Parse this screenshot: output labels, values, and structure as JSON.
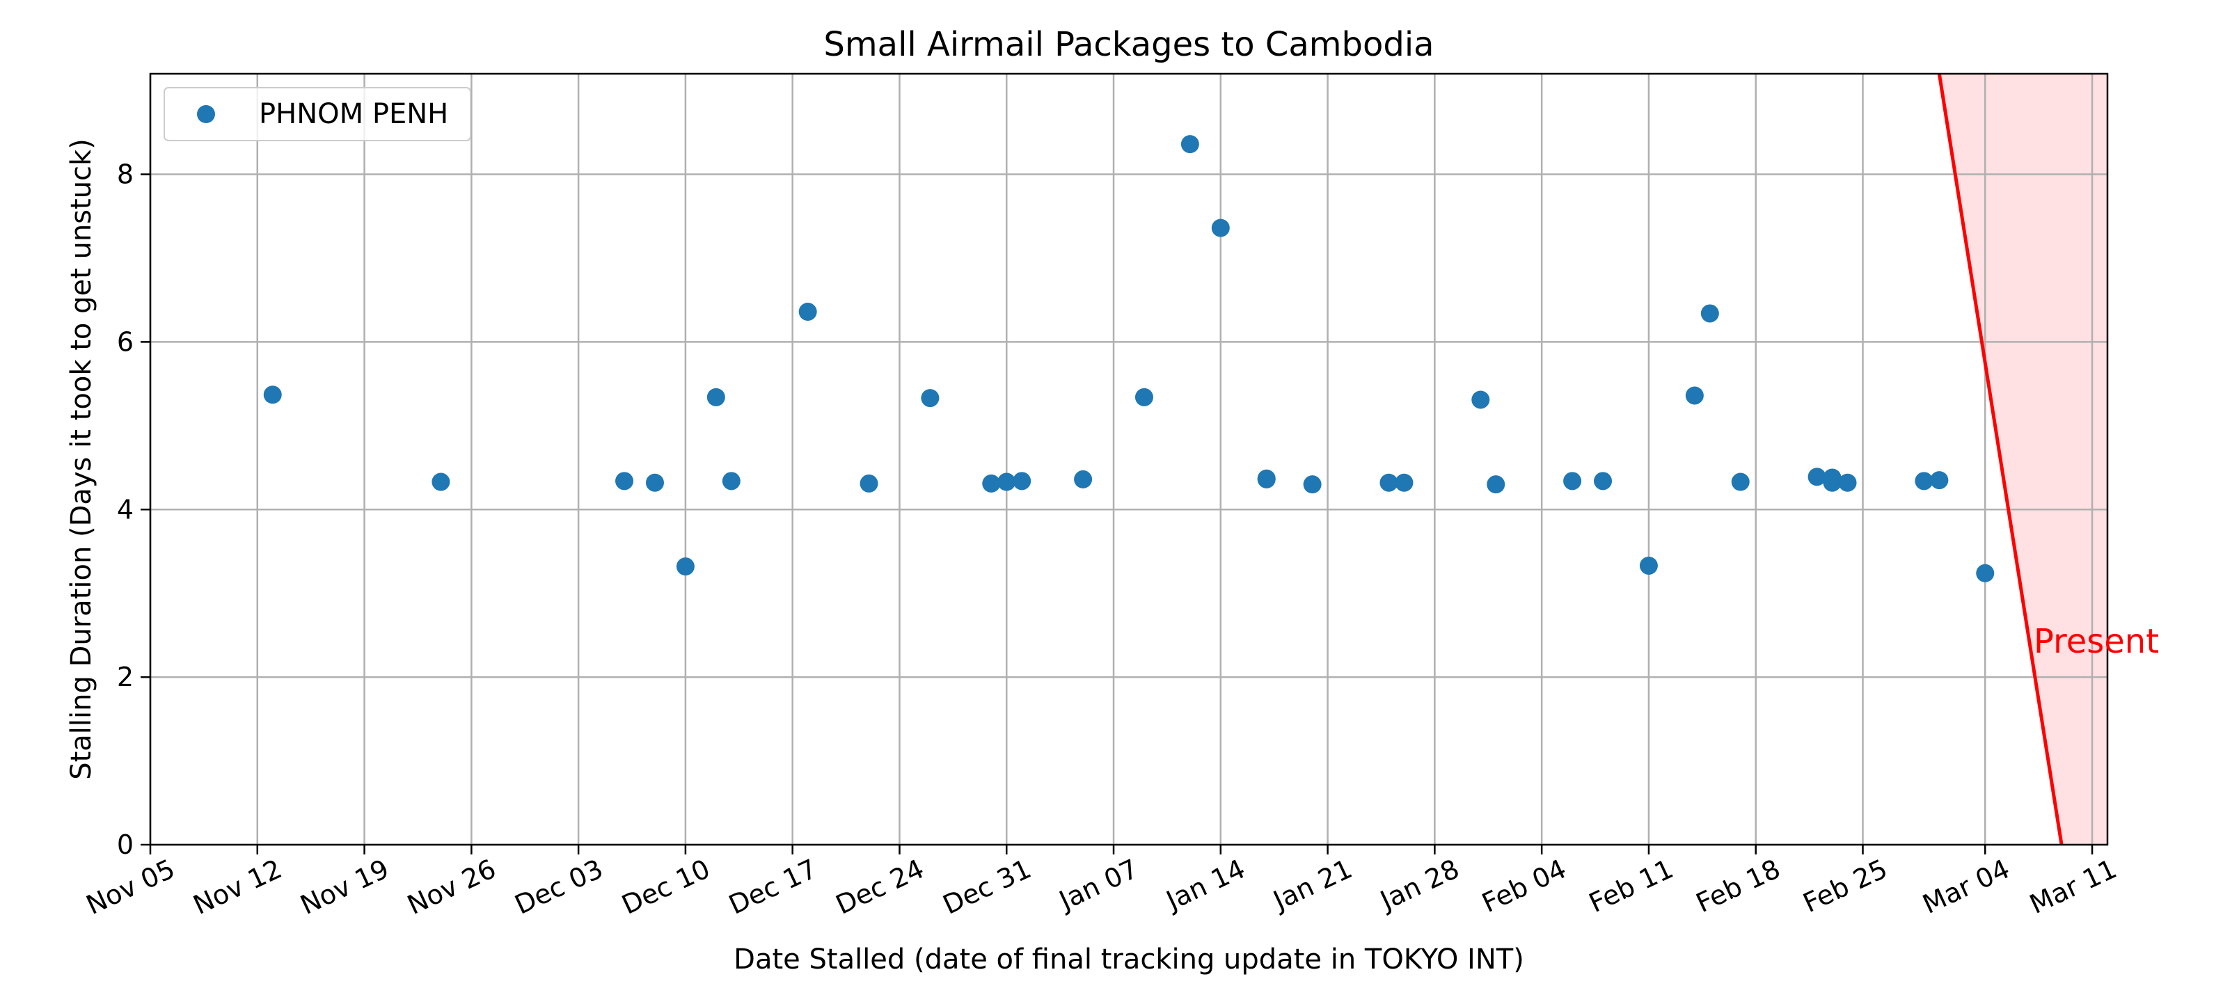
{
  "chart_data": {
    "type": "scatter",
    "title": "Small Airmail Packages to Cambodia",
    "xlabel": "Date Stalled (date of final tracking update in TOKYO INT)",
    "ylabel": "Stalling Duration (Days it took to get unstuck)",
    "x_is_date": true,
    "xlim": [
      "2023-11-05",
      "2024-03-12"
    ],
    "ylim": [
      0,
      9.2
    ],
    "x_ticks": [
      "2023-11-05",
      "2023-11-12",
      "2023-11-19",
      "2023-11-26",
      "2023-12-03",
      "2023-12-10",
      "2023-12-17",
      "2023-12-24",
      "2023-12-31",
      "2024-01-07",
      "2024-01-14",
      "2024-01-21",
      "2024-01-28",
      "2024-02-04",
      "2024-02-11",
      "2024-02-18",
      "2024-02-25",
      "2024-03-04",
      "2024-03-11"
    ],
    "x_tick_labels": [
      "Nov 05",
      "Nov 12",
      "Nov 19",
      "Nov 26",
      "Dec 03",
      "Dec 10",
      "Dec 17",
      "Dec 24",
      "Dec 31",
      "Jan 07",
      "Jan 14",
      "Jan 21",
      "Jan 28",
      "Feb 04",
      "Feb 11",
      "Feb 18",
      "Feb 25",
      "Mar 04",
      "Mar 11"
    ],
    "y_ticks": [
      0,
      2,
      4,
      6,
      8
    ],
    "y_tick_labels": [
      "0",
      "2",
      "4",
      "6",
      "8"
    ],
    "grid": true,
    "legend_position": "top-left",
    "series": [
      {
        "name": "PHNOM PENH",
        "color": "#1f77b4",
        "points": [
          {
            "x": "2023-11-13",
            "y": 5.37
          },
          {
            "x": "2023-11-24",
            "y": 4.33
          },
          {
            "x": "2023-12-06",
            "y": 4.34
          },
          {
            "x": "2023-12-08",
            "y": 4.32
          },
          {
            "x": "2023-12-10",
            "y": 3.32
          },
          {
            "x": "2023-12-12",
            "y": 5.34
          },
          {
            "x": "2023-12-13",
            "y": 4.34
          },
          {
            "x": "2023-12-18",
            "y": 6.36
          },
          {
            "x": "2023-12-22",
            "y": 4.31
          },
          {
            "x": "2023-12-26",
            "y": 5.33
          },
          {
            "x": "2023-12-30",
            "y": 4.31
          },
          {
            "x": "2023-12-31",
            "y": 4.33
          },
          {
            "x": "2024-01-01",
            "y": 4.34
          },
          {
            "x": "2024-01-05",
            "y": 4.36
          },
          {
            "x": "2024-01-09",
            "y": 5.34
          },
          {
            "x": "2024-01-12",
            "y": 8.36
          },
          {
            "x": "2024-01-14",
            "y": 7.36
          },
          {
            "x": "2024-01-17",
            "y": 4.36
          },
          {
            "x": "2024-01-17",
            "y": 4.37
          },
          {
            "x": "2024-01-20",
            "y": 4.3
          },
          {
            "x": "2024-01-25",
            "y": 4.32
          },
          {
            "x": "2024-01-26",
            "y": 4.32
          },
          {
            "x": "2024-01-31",
            "y": 5.31
          },
          {
            "x": "2024-02-01",
            "y": 4.3
          },
          {
            "x": "2024-02-06",
            "y": 4.34
          },
          {
            "x": "2024-02-08",
            "y": 4.34
          },
          {
            "x": "2024-02-11",
            "y": 3.33
          },
          {
            "x": "2024-02-14",
            "y": 5.36
          },
          {
            "x": "2024-02-15",
            "y": 6.34
          },
          {
            "x": "2024-02-17",
            "y": 4.33
          },
          {
            "x": "2024-02-22",
            "y": 4.39
          },
          {
            "x": "2024-02-23",
            "y": 4.38
          },
          {
            "x": "2024-02-23",
            "y": 4.32
          },
          {
            "x": "2024-02-24",
            "y": 4.32
          },
          {
            "x": "2024-02-29",
            "y": 4.34
          },
          {
            "x": "2024-03-01",
            "y": 4.35
          },
          {
            "x": "2024-03-04",
            "y": 3.24
          }
        ]
      }
    ],
    "present_marker": {
      "label": "Present",
      "color": "#ff0000",
      "fill_color": "#ffe0e3",
      "line": [
        {
          "x": "2024-03-01",
          "y": 9.2
        },
        {
          "x": "2024-03-09",
          "y": 0
        }
      ]
    }
  }
}
